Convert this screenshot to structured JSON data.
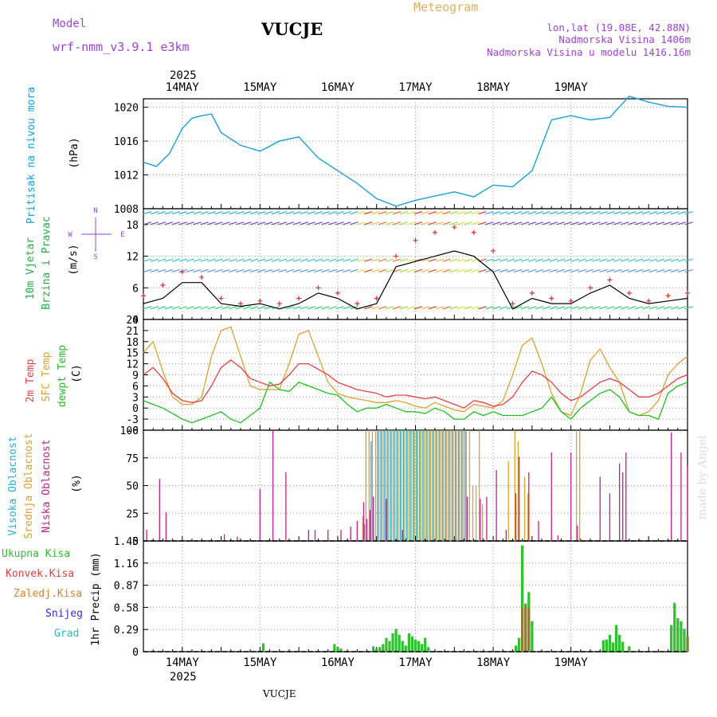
{
  "header": {
    "model_label": "Model",
    "model_name": "wrf-nmm_v3.9.1  e3km",
    "station": "VUCJE",
    "meteogram": "Meteogram",
    "lonlat": "lon,lat (19.08E, 42.88N)",
    "elev": "Nadmorska Visina 1406m",
    "elev_model": "Nadmorska Visina u modelu 1416.16m",
    "footer_station": "VUCJE",
    "made_by": "made by Angel",
    "year": "2025"
  },
  "colors": {
    "pressure": "#1aa0e0",
    "wind_speed": "#000000",
    "gust": "#e03030",
    "t2m": "#e84040",
    "sfc": "#e0a030",
    "dewpt": "#20c020",
    "high_cloud": "#20b0e0",
    "mid_cloud": "#e0a030",
    "low_cloud": "#c0208a",
    "total_precip": "#30c030",
    "conv_precip": "#e04040",
    "frozen": "#e08030",
    "snow": "#3030e0",
    "hail": "#20c0c0",
    "model_purple": "#a040e0"
  },
  "chart_data": [
    {
      "type": "line",
      "id": "pressure",
      "title": "Pritisak na nivou mora",
      "ylabel": "(hPa)",
      "ylim": [
        1008,
        1021
      ],
      "yticks": [
        1008,
        1012,
        1016,
        1020
      ],
      "x": [
        0,
        4,
        8,
        12,
        15,
        18,
        21,
        24,
        30,
        36,
        42,
        48,
        54,
        60,
        66,
        72,
        78,
        84,
        90,
        96,
        102,
        108,
        114,
        120,
        126,
        132,
        138,
        144,
        150,
        156,
        162,
        168
      ],
      "series": [
        {
          "name": "MSLP",
          "values": [
            1013.5,
            1013,
            1014.5,
            1017.5,
            1018.7,
            1019,
            1019.2,
            1017,
            1015.5,
            1014.8,
            1016,
            1016.5,
            1014,
            1012.5,
            1011,
            1009.2,
            1008.3,
            1009,
            1009.5,
            1010,
            1009.4,
            1010.8,
            1010.6,
            1012.5,
            1018.5,
            1019,
            1018.5,
            1018.8,
            1021.3,
            1020.6,
            1020.1,
            1020
          ]
        }
      ]
    },
    {
      "type": "line",
      "id": "wind",
      "title": "10m Vjetar Brzina i Pravac",
      "ylabel": "(m/s)",
      "ylim": [
        0,
        21
      ],
      "yticks": [
        0,
        6,
        12,
        18
      ],
      "compass": {
        "n": "N",
        "w": "W",
        "e": "E",
        "s": "S"
      },
      "x": [
        0,
        6,
        12,
        18,
        24,
        30,
        36,
        42,
        48,
        54,
        60,
        66,
        72,
        78,
        84,
        90,
        96,
        102,
        108,
        114,
        120,
        126,
        132,
        138,
        144,
        150,
        156,
        162,
        168
      ],
      "series": [
        {
          "name": "Brzina",
          "values": [
            3,
            4,
            7,
            7,
            3,
            2.5,
            3,
            2,
            3,
            5,
            4,
            2,
            3,
            10,
            11,
            12,
            13,
            12,
            9,
            2,
            4,
            3,
            3,
            5,
            6.5,
            4,
            3,
            3.5,
            4
          ]
        },
        {
          "name": "Udar",
          "values": [
            4.5,
            6.5,
            9,
            8,
            4,
            3,
            3.5,
            3,
            4,
            6,
            5,
            3,
            4,
            12,
            15,
            16.5,
            17.5,
            16.5,
            13,
            3,
            5,
            4,
            3.5,
            6,
            7.5,
            5,
            3.5,
            4.5,
            5
          ]
        }
      ]
    },
    {
      "type": "line",
      "id": "temp",
      "title": "2m Temp / SFC Temp / dewpt Temp",
      "ylabel": "(C)",
      "ylim": [
        -6,
        24
      ],
      "yticks": [
        -6,
        -3,
        0,
        3,
        6,
        9,
        12,
        15,
        18,
        21,
        24
      ],
      "x": [
        0,
        3,
        6,
        9,
        12,
        15,
        18,
        21,
        24,
        27,
        30,
        33,
        36,
        39,
        42,
        45,
        48,
        51,
        54,
        57,
        60,
        63,
        66,
        69,
        72,
        75,
        78,
        81,
        84,
        87,
        90,
        93,
        96,
        99,
        102,
        105,
        108,
        111,
        114,
        117,
        120,
        123,
        126,
        129,
        132,
        135,
        138,
        141,
        144,
        147,
        150,
        153,
        156,
        159,
        162,
        165,
        168
      ],
      "series": [
        {
          "name": "2m Temp",
          "values": [
            9,
            11,
            8,
            4,
            2,
            1.5,
            2,
            6,
            11,
            13,
            11,
            8,
            7,
            6,
            6.5,
            9,
            12,
            12,
            10.5,
            9,
            7,
            6,
            5,
            4.5,
            4,
            3,
            3.5,
            3.5,
            3,
            2.5,
            3,
            2,
            1,
            0,
            2,
            1.5,
            0.5,
            1,
            3,
            7,
            10,
            9,
            7,
            4,
            2,
            3,
            5,
            7,
            8,
            7,
            5,
            3,
            3,
            4,
            6,
            8,
            9
          ]
        },
        {
          "name": "SFC Temp",
          "values": [
            15,
            18,
            10,
            3,
            1,
            1,
            3,
            14,
            21,
            22,
            14,
            6,
            5,
            5,
            5,
            12,
            20,
            21,
            14,
            7,
            4,
            3,
            2.5,
            2,
            1.5,
            1.5,
            2,
            1.5,
            0.5,
            0,
            1.5,
            0.5,
            -0.5,
            -1,
            1,
            0.5,
            0,
            2,
            9,
            17,
            19,
            12,
            4,
            -1,
            -2,
            4,
            13,
            16,
            11,
            7,
            -1,
            -2,
            -1,
            2,
            9,
            12,
            14
          ]
        },
        {
          "name": "dewpt Temp",
          "values": [
            2,
            1,
            0,
            -1.5,
            -3,
            -4,
            -3,
            -2,
            -1,
            -3,
            -4,
            -2,
            0,
            7,
            5,
            4.5,
            7,
            6,
            5,
            4,
            3.5,
            1,
            -1,
            0,
            0,
            1,
            0,
            -1,
            -1,
            -1.5,
            0,
            -1,
            -3,
            -3,
            -1,
            -2,
            -1,
            -2,
            -2,
            -2,
            -1,
            0,
            3,
            -1,
            -3,
            0,
            2,
            4,
            5,
            3,
            -1,
            -2,
            -2,
            -3,
            4,
            6,
            7
          ]
        }
      ]
    },
    {
      "type": "bar",
      "id": "clouds",
      "title": "Visoka / Srednja / Niska Oblacnost",
      "ylabel": "(%)",
      "ylim": [
        0,
        100
      ],
      "yticks": [
        0,
        25,
        50,
        75,
        100
      ],
      "low_cloud": {
        "x": [
          1,
          5,
          7,
          25,
          29,
          36,
          40,
          44,
          51,
          53,
          57,
          61,
          64,
          66,
          68,
          69,
          70,
          71,
          75,
          80,
          100,
          104,
          106,
          109,
          112,
          115,
          116,
          119,
          122,
          126,
          128,
          132,
          134,
          141,
          144,
          147,
          148,
          149,
          163,
          166,
          168
        ],
        "values": [
          10,
          56,
          26,
          6,
          4,
          47,
          100,
          62,
          10,
          10,
          10,
          10,
          13,
          18,
          35,
          20,
          28,
          40,
          38,
          10,
          40,
          38,
          40,
          64,
          10,
          43,
          76,
          62,
          18,
          80,
          5,
          80,
          14,
          58,
          43,
          70,
          62,
          80,
          98,
          80,
          68
        ]
      },
      "mid_cloud": {
        "x": [
          68,
          69,
          70,
          71,
          72,
          73,
          74,
          75,
          76,
          77,
          78,
          79,
          80,
          81,
          82,
          83,
          84,
          85,
          86,
          87,
          88,
          89,
          90,
          91,
          92,
          93,
          94,
          95,
          96,
          97,
          98,
          99,
          100,
          101,
          102,
          103,
          104,
          105,
          113,
          115,
          116,
          118,
          119,
          134,
          135
        ],
        "values": [
          22,
          100,
          100,
          100,
          100,
          100,
          100,
          100,
          100,
          100,
          100,
          100,
          100,
          100,
          100,
          100,
          100,
          100,
          100,
          100,
          100,
          100,
          100,
          100,
          100,
          100,
          100,
          100,
          100,
          100,
          100,
          100,
          100,
          100,
          50,
          50,
          100,
          33,
          72,
          100,
          90,
          58,
          43,
          100,
          100
        ]
      },
      "high_cloud": {
        "x": [
          68,
          70,
          72,
          73,
          74,
          75,
          76,
          77,
          78,
          79,
          80,
          81,
          82,
          83,
          84,
          85,
          86,
          87,
          88,
          89,
          90,
          91,
          92,
          93,
          94,
          95,
          96,
          97,
          98,
          99
        ],
        "values": [
          15,
          90,
          100,
          100,
          100,
          100,
          100,
          100,
          100,
          100,
          100,
          100,
          100,
          100,
          100,
          100,
          100,
          100,
          100,
          100,
          100,
          100,
          100,
          100,
          100,
          100,
          100,
          100,
          100,
          100
        ]
      }
    },
    {
      "type": "bar",
      "id": "precip",
      "title": "1hr Precip",
      "ylabel": "(mm)",
      "ylim": [
        0,
        1.45
      ],
      "yticks": [
        0,
        0.29,
        0.58,
        0.87,
        1.16,
        1.45
      ],
      "total": {
        "x": [
          36,
          37,
          59,
          60,
          61,
          71,
          72,
          73,
          74,
          75,
          76,
          77,
          78,
          79,
          80,
          81,
          82,
          83,
          84,
          85,
          86,
          87,
          88,
          115,
          116,
          117,
          118,
          119,
          120,
          142,
          143,
          144,
          145,
          146,
          147,
          148,
          150,
          163,
          164,
          165,
          166,
          167,
          168
        ],
        "values": [
          0.02,
          0.11,
          0.1,
          0.06,
          0.04,
          0.07,
          0.04,
          0.06,
          0.1,
          0.18,
          0.14,
          0.24,
          0.3,
          0.22,
          0.14,
          0.08,
          0.24,
          0.2,
          0.16,
          0.14,
          0.1,
          0.18,
          0.06,
          0.08,
          0.18,
          1.39,
          0.63,
          0.78,
          0.4,
          0.15,
          0.16,
          0.22,
          0.12,
          0.35,
          0.22,
          0.13,
          0.07,
          0.35,
          0.64,
          0.44,
          0.4,
          0.3,
          0.2
        ]
      },
      "conv": {
        "x": [
          117,
          118,
          119,
          168
        ],
        "values": [
          0.58,
          0.6,
          0.58,
          0.2
        ]
      }
    }
  ],
  "labels": {
    "days": [
      "14MAY",
      "15MAY",
      "16MAY",
      "17MAY",
      "18MAY",
      "19MAY"
    ],
    "pres_title": "Pritisak na nivou mora",
    "pres_unit": "(hPa)",
    "wind_title1": "10m Vjetar",
    "wind_title2": "Brzina i Pravac",
    "wind_unit": "(m/s)",
    "temp_t1": "2m Temp",
    "temp_t2": "SFC Temp",
    "temp_t3": "dewpt Temp",
    "temp_unit": "(C)",
    "cloud_t1": "Visoka Oblacnost",
    "cloud_t2": "Srednja Oblacnost",
    "cloud_t3": "Niska  Oblacnost",
    "cloud_unit": "(%)",
    "precip_legend": [
      "Ukupna  Kisa",
      "Konvek.Kisa",
      "Zaledj.Kisa",
      "Snijeg",
      "Grad"
    ],
    "precip_title": "1hr Precip (mm)"
  }
}
